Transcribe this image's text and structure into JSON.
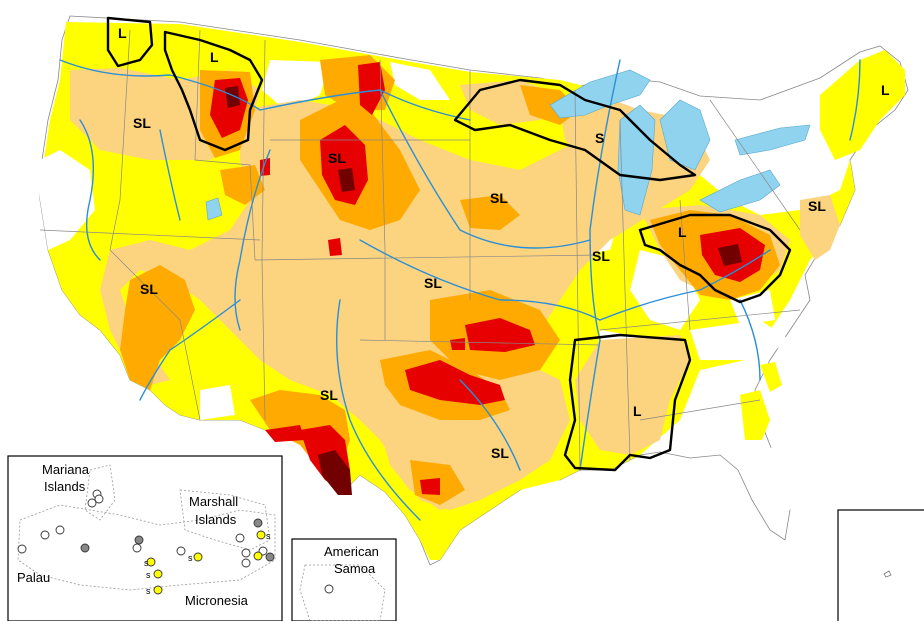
{
  "colors": {
    "water": "#8fd3ef",
    "river": "#2a8fd8",
    "D0_abnormally_dry": "#ffff00",
    "D1_moderate": "#fcd37f",
    "D2_severe": "#ffaa00",
    "D3_extreme": "#e60000",
    "D4_exceptional": "#730000",
    "boundary": "#000000",
    "state_line": "#888888"
  },
  "impact_labels": [
    {
      "id": "l-mt-west",
      "text": "L"
    },
    {
      "id": "l-mt-east",
      "text": "L"
    },
    {
      "id": "sl-nw",
      "text": "SL"
    },
    {
      "id": "sl-dakota",
      "text": "SL"
    },
    {
      "id": "s-michigan",
      "text": "S"
    },
    {
      "id": "sl-plains-north",
      "text": "SL"
    },
    {
      "id": "l-ohio",
      "text": "L"
    },
    {
      "id": "sl-midwest",
      "text": "SL"
    },
    {
      "id": "sl-mid-atlantic",
      "text": "SL"
    },
    {
      "id": "l-maine",
      "text": "L"
    },
    {
      "id": "sl-southwest",
      "text": "SL"
    },
    {
      "id": "sl-kansas",
      "text": "SL"
    },
    {
      "id": "sl-texas-west",
      "text": "SL"
    },
    {
      "id": "sl-texas-east",
      "text": "SL"
    },
    {
      "id": "l-south",
      "text": "L"
    }
  ],
  "insets": {
    "pacific": {
      "mariana_line1": "Mariana",
      "mariana_line2": "Islands",
      "marshall_line1": "Marshall",
      "marshall_line2": "Islands",
      "palau": "Palau",
      "micronesia": "Micronesia",
      "short_term_marker": "s"
    },
    "samoa": {
      "line1": "American",
      "line2": "Samoa"
    }
  }
}
